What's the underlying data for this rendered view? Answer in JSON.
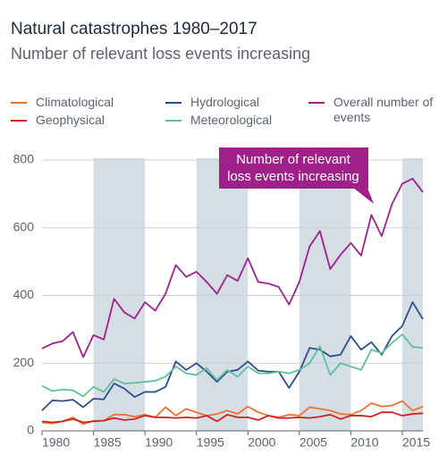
{
  "chart_data": {
    "type": "line",
    "title": "Natural catastrophes 1980–2017",
    "subtitle": "Number of relevant loss events increasing",
    "annotation": [
      "Number of relevant",
      "loss events increasing"
    ],
    "x": [
      1980,
      1981,
      1982,
      1983,
      1984,
      1985,
      1986,
      1987,
      1988,
      1989,
      1990,
      1991,
      1992,
      1993,
      1994,
      1995,
      1996,
      1997,
      1998,
      1999,
      2000,
      2001,
      2002,
      2003,
      2004,
      2005,
      2006,
      2007,
      2008,
      2009,
      2010,
      2011,
      2012,
      2013,
      2014,
      2015,
      2016,
      2017
    ],
    "series": [
      {
        "name": "Climatological",
        "color": "#f07030",
        "values": [
          25,
          22,
          28,
          40,
          20,
          30,
          30,
          48,
          48,
          42,
          48,
          40,
          70,
          45,
          65,
          55,
          45,
          50,
          60,
          50,
          72,
          55,
          45,
          40,
          48,
          45,
          70,
          65,
          60,
          50,
          48,
          60,
          82,
          72,
          75,
          88,
          60,
          72
        ]
      },
      {
        "name": "Geophysical",
        "color": "#d42020",
        "values": [
          28,
          25,
          28,
          35,
          25,
          28,
          30,
          38,
          32,
          35,
          45,
          40,
          40,
          38,
          40,
          38,
          45,
          28,
          48,
          40,
          40,
          32,
          45,
          38,
          38,
          40,
          38,
          42,
          48,
          35,
          45,
          45,
          42,
          55,
          55,
          45,
          50,
          52
        ]
      },
      {
        "name": "Hydrological",
        "color": "#2e4f8c",
        "values": [
          60,
          90,
          88,
          92,
          70,
          95,
          93,
          140,
          125,
          100,
          115,
          115,
          130,
          205,
          180,
          200,
          175,
          145,
          175,
          180,
          205,
          178,
          175,
          175,
          127,
          175,
          245,
          240,
          220,
          225,
          280,
          240,
          262,
          225,
          280,
          310,
          380,
          330
        ]
      },
      {
        "name": "Meteorological",
        "color": "#5fbf9f",
        "values": [
          133,
          118,
          122,
          120,
          102,
          130,
          115,
          153,
          140,
          142,
          145,
          148,
          160,
          190,
          170,
          165,
          185,
          150,
          180,
          160,
          190,
          170,
          170,
          175,
          170,
          180,
          200,
          250,
          165,
          200,
          190,
          180,
          240,
          230,
          260,
          285,
          248,
          245
        ]
      },
      {
        "name": "Overall number of events",
        "color": "#a0208a",
        "values": [
          243,
          258,
          265,
          292,
          218,
          283,
          270,
          390,
          350,
          332,
          380,
          355,
          405,
          490,
          455,
          470,
          440,
          405,
          460,
          443,
          510,
          440,
          435,
          425,
          373,
          440,
          545,
          590,
          478,
          520,
          555,
          518,
          638,
          575,
          670,
          730,
          745,
          705
        ]
      }
    ],
    "xlim": [
      1980,
      2017
    ],
    "xticks": [
      1980,
      1985,
      1990,
      1995,
      2000,
      2005,
      2010,
      2015
    ],
    "ylim": [
      0,
      800
    ],
    "yticks": [
      0,
      200,
      400,
      600,
      800
    ],
    "grid": true
  }
}
